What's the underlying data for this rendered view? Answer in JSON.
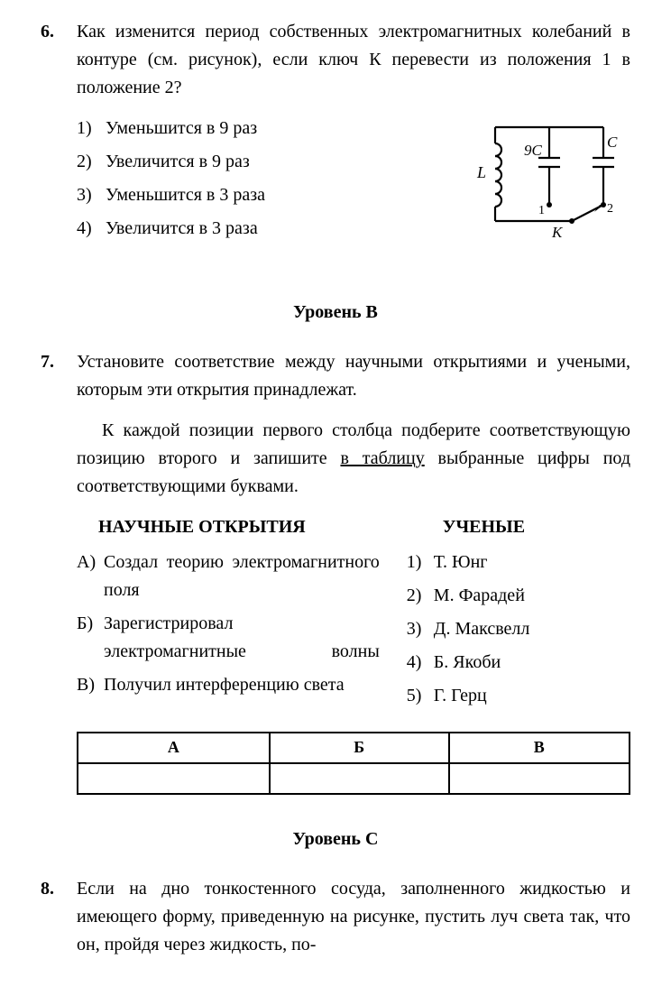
{
  "q6": {
    "number": "6.",
    "text": "Как изменится период собственных электромагнитных колебаний в контуре (см. рисунок), если ключ К перевести из положения 1 в положение 2?",
    "options": [
      {
        "n": "1)",
        "t": "Уменьшится в 9 раз"
      },
      {
        "n": "2)",
        "t": "Увеличится в 9 раз"
      },
      {
        "n": "3)",
        "t": "Уменьшится в 3 раза"
      },
      {
        "n": "4)",
        "t": "Увеличится в 3 раза"
      }
    ],
    "circuit": {
      "L_label": "L",
      "C1_label": "9C",
      "C2_label": "C",
      "pos1_label": "1",
      "pos2_label": "2",
      "K_label": "K",
      "stroke": "#000000",
      "stroke_width": 2.2,
      "width": 170,
      "height": 170
    }
  },
  "levelB": "Уровень В",
  "q7": {
    "number": "7.",
    "text1": "Установите соответствие между научными открытиями и учеными, которым эти открытия принадлежат.",
    "text2a": "К каждой позиции первого столбца подберите соответствующую позицию второго и запишите ",
    "text2b": "в таблицу",
    "text2c": " выбранные цифры под соответствующими буквами.",
    "left_head": "НАУЧНЫЕ ОТКРЫТИЯ",
    "right_head": "УЧЕНЫЕ",
    "left_items": [
      {
        "l": "А)",
        "t": "Создал теорию электромагнитного поля"
      },
      {
        "l": "Б)",
        "t": "Зарегистрировал электромагнитные волны"
      },
      {
        "l": "В)",
        "t": "Получил интерференцию света"
      }
    ],
    "right_items": [
      {
        "l": "1)",
        "t": "Т. Юнг"
      },
      {
        "l": "2)",
        "t": "М. Фарадей"
      },
      {
        "l": "3)",
        "t": "Д. Максвелл"
      },
      {
        "l": "4)",
        "t": "Б. Якоби"
      },
      {
        "l": "5)",
        "t": "Г. Герц"
      }
    ],
    "table_headers": [
      "А",
      "Б",
      "В"
    ]
  },
  "levelC": "Уровень С",
  "q8": {
    "number": "8.",
    "text": "Если на дно тонкостенного сосуда, заполненного жидкостью и имеющего форму, приведенную на рисунке, пустить луч света так, что он, пройдя через жидкость, по-"
  }
}
